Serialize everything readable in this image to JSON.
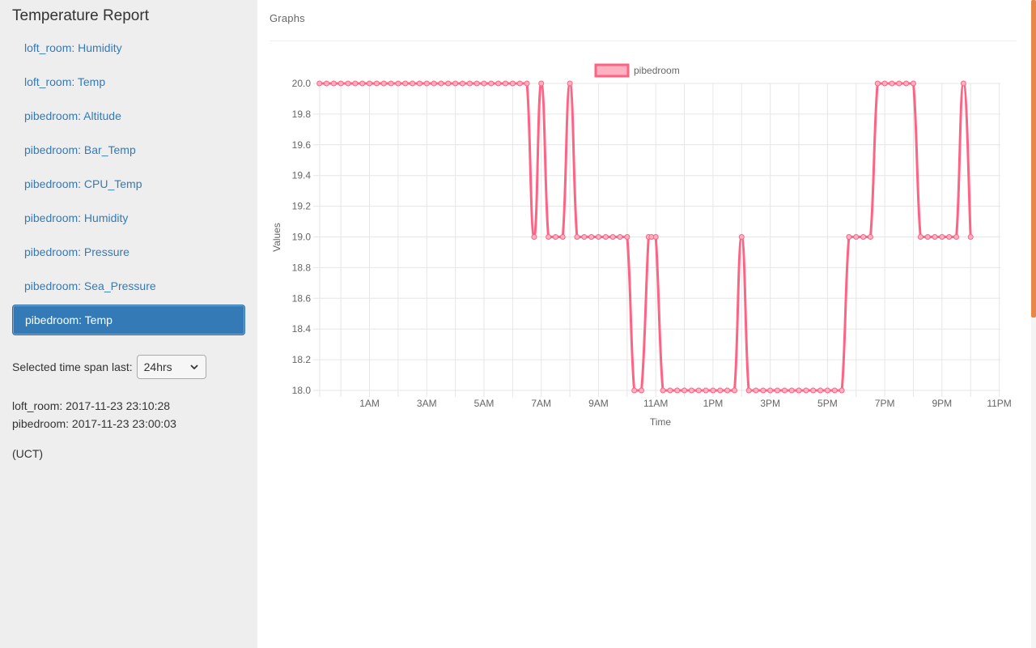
{
  "sidebar": {
    "title": "Temperature Report",
    "items": [
      {
        "label": "loft_room: Humidity",
        "name": "sidebar-item-loft-room-humidity",
        "active": false
      },
      {
        "label": "loft_room: Temp",
        "name": "sidebar-item-loft-room-temp",
        "active": false
      },
      {
        "label": "pibedroom: Altitude",
        "name": "sidebar-item-pibedroom-altitude",
        "active": false
      },
      {
        "label": "pibedroom: Bar_Temp",
        "name": "sidebar-item-pibedroom-bar-temp",
        "active": false
      },
      {
        "label": "pibedroom: CPU_Temp",
        "name": "sidebar-item-pibedroom-cpu-temp",
        "active": false
      },
      {
        "label": "pibedroom: Humidity",
        "name": "sidebar-item-pibedroom-humidity",
        "active": false
      },
      {
        "label": "pibedroom: Pressure",
        "name": "sidebar-item-pibedroom-pressure",
        "active": false
      },
      {
        "label": "pibedroom: Sea_Pressure",
        "name": "sidebar-item-pibedroom-sea-pressure",
        "active": false
      },
      {
        "label": "pibedroom: Temp",
        "name": "sidebar-item-pibedroom-temp",
        "active": true
      }
    ],
    "time_span": {
      "label": "Selected time span last:",
      "value": "24hrs"
    },
    "status": {
      "loft_room": "loft_room: 2017-11-23 23:10:28",
      "pibedroom": "pibedroom: 2017-11-23 23:00:03"
    },
    "timezone": "(UCT)"
  },
  "main": {
    "panel_title": "Graphs"
  },
  "colors": {
    "accent": "#337ab7",
    "series": "#ff6384",
    "series_fill": "#ffb1c1",
    "grid": "#e6e6e6",
    "scroll_thumb": "#e8874a"
  },
  "chart_data": {
    "type": "line",
    "xlabel": "Time",
    "ylabel": "Values",
    "ylim": [
      18.0,
      20.0
    ],
    "yticks": [
      "20.0",
      "19.8",
      "19.6",
      "19.4",
      "19.2",
      "19.0",
      "18.8",
      "18.6",
      "18.4",
      "18.2",
      "18.0"
    ],
    "xticks": [
      "1AM",
      "3AM",
      "5AM",
      "7AM",
      "9AM",
      "11AM",
      "1PM",
      "3PM",
      "5PM",
      "7PM",
      "9PM",
      "11PM"
    ],
    "xlim_hours": [
      23.26,
      47.04
    ],
    "grid": true,
    "legend_position": "top",
    "series": [
      {
        "name": "pibedroom",
        "points": [
          [
            23.25,
            20.0
          ],
          [
            23.5,
            20.0
          ],
          [
            23.75,
            20.0
          ],
          [
            24.0,
            20.0
          ],
          [
            24.25,
            20.0
          ],
          [
            24.5,
            20.0
          ],
          [
            24.75,
            20.0
          ],
          [
            25.0,
            20.0
          ],
          [
            25.25,
            20.0
          ],
          [
            25.5,
            20.0
          ],
          [
            25.75,
            20.0
          ],
          [
            26.0,
            20.0
          ],
          [
            26.25,
            20.0
          ],
          [
            26.5,
            20.0
          ],
          [
            26.75,
            20.0
          ],
          [
            27.0,
            20.0
          ],
          [
            27.25,
            20.0
          ],
          [
            27.5,
            20.0
          ],
          [
            27.75,
            20.0
          ],
          [
            28.0,
            20.0
          ],
          [
            28.25,
            20.0
          ],
          [
            28.5,
            20.0
          ],
          [
            28.75,
            20.0
          ],
          [
            29.0,
            20.0
          ],
          [
            29.25,
            20.0
          ],
          [
            29.5,
            20.0
          ],
          [
            29.75,
            20.0
          ],
          [
            30.0,
            20.0
          ],
          [
            30.25,
            20.0
          ],
          [
            30.5,
            20.0
          ],
          [
            30.75,
            19.0
          ],
          [
            31.0,
            20.0
          ],
          [
            31.25,
            19.0
          ],
          [
            31.5,
            19.0
          ],
          [
            31.75,
            19.0
          ],
          [
            32.0,
            20.0
          ],
          [
            32.25,
            19.0
          ],
          [
            32.5,
            19.0
          ],
          [
            32.75,
            19.0
          ],
          [
            33.0,
            19.0
          ],
          [
            33.25,
            19.0
          ],
          [
            33.5,
            19.0
          ],
          [
            33.75,
            19.0
          ],
          [
            34.0,
            19.0
          ],
          [
            34.25,
            18.0
          ],
          [
            34.5,
            18.0
          ],
          [
            34.75,
            19.0
          ],
          [
            34.85,
            19.0
          ],
          [
            35.0,
            19.0
          ],
          [
            35.25,
            18.0
          ],
          [
            35.5,
            18.0
          ],
          [
            35.75,
            18.0
          ],
          [
            36.0,
            18.0
          ],
          [
            36.25,
            18.0
          ],
          [
            36.5,
            18.0
          ],
          [
            36.75,
            18.0
          ],
          [
            37.0,
            18.0
          ],
          [
            37.25,
            18.0
          ],
          [
            37.5,
            18.0
          ],
          [
            37.75,
            18.0
          ],
          [
            38.0,
            19.0
          ],
          [
            38.25,
            18.0
          ],
          [
            38.5,
            18.0
          ],
          [
            38.75,
            18.0
          ],
          [
            39.0,
            18.0
          ],
          [
            39.25,
            18.0
          ],
          [
            39.5,
            18.0
          ],
          [
            39.75,
            18.0
          ],
          [
            40.0,
            18.0
          ],
          [
            40.25,
            18.0
          ],
          [
            40.5,
            18.0
          ],
          [
            40.75,
            18.0
          ],
          [
            41.0,
            18.0
          ],
          [
            41.25,
            18.0
          ],
          [
            41.5,
            18.0
          ],
          [
            41.75,
            19.0
          ],
          [
            42.0,
            19.0
          ],
          [
            42.25,
            19.0
          ],
          [
            42.5,
            19.0
          ],
          [
            42.75,
            20.0
          ],
          [
            43.0,
            20.0
          ],
          [
            43.25,
            20.0
          ],
          [
            43.5,
            20.0
          ],
          [
            43.75,
            20.0
          ],
          [
            44.0,
            20.0
          ],
          [
            44.25,
            19.0
          ],
          [
            44.5,
            19.0
          ],
          [
            44.75,
            19.0
          ],
          [
            45.0,
            19.0
          ],
          [
            45.25,
            19.0
          ],
          [
            45.5,
            19.0
          ],
          [
            45.75,
            20.0
          ],
          [
            46.0,
            19.0
          ]
        ]
      }
    ]
  }
}
